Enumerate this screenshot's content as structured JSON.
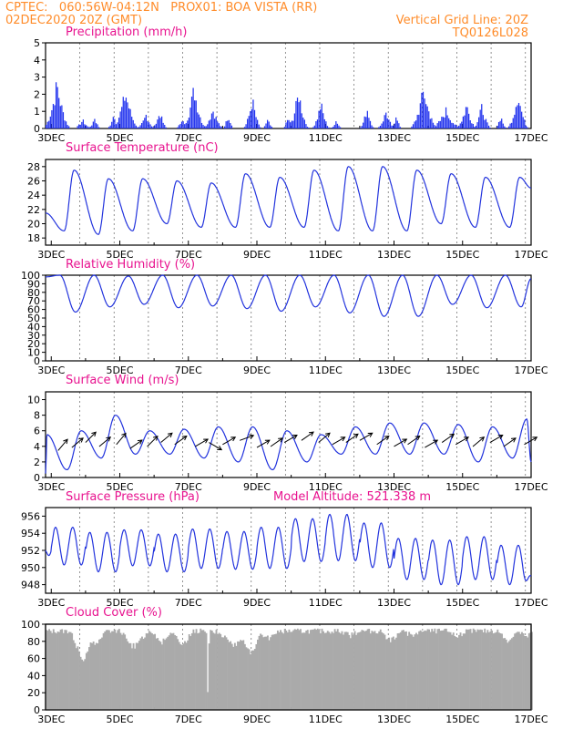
{
  "header": {
    "line1_left": "CPTEC:   060:56W-04:12N   PROX01: BOA VISTA (RR)",
    "line2_left": "02DEC2020 20Z (GMT)",
    "line2_right": "Vertical Grid Line: 20Z",
    "line3_right": "TQ0126L028"
  },
  "colors": {
    "header": "#ff8c2a",
    "title": "#e8138f",
    "line": "#2233dd",
    "bar": "#2233ee",
    "cloud": "#aaaaaa"
  },
  "x_labels": [
    "3DEC",
    "5DEC",
    "7DEC",
    "9DEC",
    "11DEC",
    "13DEC",
    "15DEC",
    "17DEC"
  ],
  "chart_data": [
    {
      "type": "bar",
      "title": "Precipitation (mm/h)",
      "ylim": [
        0,
        5
      ],
      "yticks": [
        0,
        1,
        2,
        3,
        4,
        5
      ],
      "x_range_days": [
        2.833,
        17.0
      ],
      "events": [
        {
          "day": 3.15,
          "peak": 3.2,
          "width": 0.45
        },
        {
          "day": 3.9,
          "peak": 0.6,
          "width": 0.3
        },
        {
          "day": 4.25,
          "peak": 0.8,
          "width": 0.2
        },
        {
          "day": 4.8,
          "peak": 0.9,
          "width": 0.2
        },
        {
          "day": 5.15,
          "peak": 2.6,
          "width": 0.45
        },
        {
          "day": 5.75,
          "peak": 1.0,
          "width": 0.3
        },
        {
          "day": 6.15,
          "peak": 1.2,
          "width": 0.25
        },
        {
          "day": 6.8,
          "peak": 0.7,
          "width": 0.2
        },
        {
          "day": 7.15,
          "peak": 2.9,
          "width": 0.4
        },
        {
          "day": 7.7,
          "peak": 1.4,
          "width": 0.35
        },
        {
          "day": 8.15,
          "peak": 1.0,
          "width": 0.2
        },
        {
          "day": 8.85,
          "peak": 2.1,
          "width": 0.3
        },
        {
          "day": 9.3,
          "peak": 0.6,
          "width": 0.2
        },
        {
          "day": 9.9,
          "peak": 0.8,
          "width": 0.2
        },
        {
          "day": 10.2,
          "peak": 2.6,
          "width": 0.35
        },
        {
          "day": 10.85,
          "peak": 1.8,
          "width": 0.3
        },
        {
          "day": 11.3,
          "peak": 0.6,
          "width": 0.2
        },
        {
          "day": 12.2,
          "peak": 1.5,
          "width": 0.25
        },
        {
          "day": 12.75,
          "peak": 1.2,
          "width": 0.3
        },
        {
          "day": 13.05,
          "peak": 0.8,
          "width": 0.2
        },
        {
          "day": 13.85,
          "peak": 2.8,
          "width": 0.45
        },
        {
          "day": 14.5,
          "peak": 1.3,
          "width": 0.5
        },
        {
          "day": 15.1,
          "peak": 1.7,
          "width": 0.35
        },
        {
          "day": 15.55,
          "peak": 1.6,
          "width": 0.3
        },
        {
          "day": 16.1,
          "peak": 0.9,
          "width": 0.2
        },
        {
          "day": 16.6,
          "peak": 2.6,
          "width": 0.35
        }
      ]
    },
    {
      "type": "line",
      "title": "Surface Temperature (nC)",
      "ylim": [
        17,
        29
      ],
      "yticks": [
        18,
        20,
        22,
        24,
        26,
        28
      ],
      "x_range_days": [
        2.833,
        17.0
      ],
      "diurnal": {
        "max_hour": 16,
        "min_hour": 9,
        "maxima": [
          25.5,
          27.5,
          26.3,
          26.3,
          26.0,
          25.7,
          27.0,
          26.5,
          27.5,
          28.0,
          28.0,
          27.5,
          27.0,
          26.5,
          26.5,
          26.0
        ],
        "minima": [
          19.0,
          18.5,
          19.0,
          20.0,
          19.5,
          19.5,
          19.5,
          19.5,
          19.0,
          19.0,
          19.0,
          20.0,
          19.5,
          19.5,
          20.0,
          19.5
        ],
        "start": 21.5,
        "end": 25.0
      }
    },
    {
      "type": "line",
      "title": "Relative Humidity (%)",
      "ylim": [
        0,
        100
      ],
      "yticks": [
        0,
        10,
        20,
        30,
        40,
        50,
        60,
        70,
        80,
        90,
        100
      ],
      "x_range_days": [
        2.833,
        17.0
      ],
      "diurnal": {
        "max_hour": 6,
        "min_hour": 17,
        "maxima": [
          100,
          100,
          99,
          100,
          100,
          100,
          100,
          100,
          100,
          100,
          100,
          100,
          100,
          100,
          100,
          99
        ],
        "minima": [
          68,
          57,
          63,
          66,
          62,
          64,
          61,
          58,
          63,
          56,
          52,
          52,
          66,
          62,
          63,
          66
        ],
        "start": 98,
        "end": 96
      }
    },
    {
      "type": "line",
      "title": "Surface Wind (m/s)",
      "ylim": [
        0,
        11
      ],
      "yticks": [
        0,
        2,
        4,
        6,
        8,
        10
      ],
      "x_range_days": [
        2.833,
        17.0
      ],
      "diurnal": {
        "max_hour": 21,
        "min_hour": 11,
        "maxima": [
          5.5,
          6.0,
          8.0,
          6.0,
          6.2,
          6.5,
          6.5,
          6.0,
          5.5,
          6.5,
          7.0,
          7.0,
          6.8,
          6.5,
          7.5,
          8.0
        ],
        "minima": [
          1.0,
          2.5,
          3.0,
          3.0,
          2.5,
          2.0,
          1.0,
          2.0,
          3.0,
          3.0,
          3.0,
          3.0,
          2.0,
          2.5,
          1.5,
          2.0
        ],
        "start": 0.5,
        "end": 2.0
      },
      "wind_arrows": [
        {
          "day": 3.2,
          "speed": 2.2,
          "dir": 220
        },
        {
          "day": 3.6,
          "speed": 2.5,
          "dir": 230
        },
        {
          "day": 4.0,
          "speed": 3.0,
          "dir": 225
        },
        {
          "day": 4.4,
          "speed": 2.6,
          "dir": 230
        },
        {
          "day": 4.9,
          "speed": 2.8,
          "dir": 220
        },
        {
          "day": 5.3,
          "speed": 2.4,
          "dir": 235
        },
        {
          "day": 5.8,
          "speed": 2.6,
          "dir": 225
        },
        {
          "day": 6.2,
          "speed": 3.0,
          "dir": 230
        },
        {
          "day": 6.6,
          "speed": 2.8,
          "dir": 235
        },
        {
          "day": 7.2,
          "speed": 2.6,
          "dir": 240
        },
        {
          "day": 7.6,
          "speed": 3.0,
          "dir": 300
        },
        {
          "day": 8.0,
          "speed": 2.8,
          "dir": 240
        },
        {
          "day": 8.5,
          "speed": 3.2,
          "dir": 250
        },
        {
          "day": 9.0,
          "speed": 2.5,
          "dir": 240
        },
        {
          "day": 9.4,
          "speed": 2.6,
          "dir": 235
        },
        {
          "day": 9.8,
          "speed": 3.0,
          "dir": 240
        },
        {
          "day": 10.3,
          "speed": 3.2,
          "dir": 235
        },
        {
          "day": 10.8,
          "speed": 3.0,
          "dir": 230
        },
        {
          "day": 11.2,
          "speed": 2.8,
          "dir": 240
        },
        {
          "day": 11.6,
          "speed": 3.0,
          "dir": 235
        },
        {
          "day": 12.0,
          "speed": 3.2,
          "dir": 240
        },
        {
          "day": 12.5,
          "speed": 2.8,
          "dir": 235
        },
        {
          "day": 13.0,
          "speed": 2.6,
          "dir": 240
        },
        {
          "day": 13.4,
          "speed": 2.8,
          "dir": 235
        },
        {
          "day": 13.9,
          "speed": 2.5,
          "dir": 240
        },
        {
          "day": 14.4,
          "speed": 3.0,
          "dir": 235
        },
        {
          "day": 14.8,
          "speed": 2.8,
          "dir": 240
        },
        {
          "day": 15.3,
          "speed": 2.6,
          "dir": 230
        },
        {
          "day": 15.8,
          "speed": 3.0,
          "dir": 240
        },
        {
          "day": 16.2,
          "speed": 2.6,
          "dir": 235
        },
        {
          "day": 16.8,
          "speed": 2.8,
          "dir": 240
        }
      ]
    },
    {
      "type": "line",
      "title": "Surface Pressure (hPa)",
      "annotation": "Model Altitude: 521.338 m",
      "ylim": [
        947,
        957
      ],
      "yticks": [
        948,
        950,
        952,
        954,
        956
      ],
      "x_range_days": [
        2.833,
        17.0
      ],
      "semidiurnal": {
        "max_hours": [
          15,
          3
        ],
        "min_hours": [
          21,
          9
        ],
        "mean": [
          952.0,
          952.5,
          951.8,
          952.3,
          951.7,
          952.2,
          952.0,
          952.3,
          953.2,
          953.5,
          952.6,
          951.0,
          950.6,
          951.1,
          950.3,
          950.0
        ],
        "amp": [
          2.0,
          2.2,
          2.3,
          2.1,
          2.2,
          2.3,
          2.2,
          2.4,
          2.5,
          2.7,
          2.6,
          2.4,
          2.6,
          2.5,
          2.3,
          2.1
        ],
        "start": 952.0,
        "end": 949.0
      }
    },
    {
      "type": "bar",
      "title": "Cloud Cover (%)",
      "ylim": [
        0,
        100
      ],
      "yticks": [
        0,
        20,
        40,
        60,
        80,
        100
      ],
      "x_range_days": [
        2.833,
        17.0
      ],
      "base_level": 92,
      "dips": [
        {
          "day": 3.9,
          "level": 55,
          "width": 0.35
        },
        {
          "day": 4.3,
          "level": 75,
          "width": 0.25
        },
        {
          "day": 5.4,
          "level": 72,
          "width": 0.4
        },
        {
          "day": 6.2,
          "level": 80,
          "width": 0.3
        },
        {
          "day": 6.8,
          "level": 72,
          "width": 0.3
        },
        {
          "day": 7.55,
          "level": 2,
          "width": 0.04
        },
        {
          "day": 7.9,
          "level": 88,
          "width": 0.3
        },
        {
          "day": 8.3,
          "level": 72,
          "width": 0.35
        },
        {
          "day": 8.8,
          "level": 62,
          "width": 0.3
        },
        {
          "day": 9.3,
          "level": 82,
          "width": 0.3
        },
        {
          "day": 11.7,
          "level": 88,
          "width": 0.3
        },
        {
          "day": 12.9,
          "level": 80,
          "width": 0.3
        },
        {
          "day": 13.5,
          "level": 86,
          "width": 0.3
        },
        {
          "day": 14.8,
          "level": 86,
          "width": 0.3
        },
        {
          "day": 16.3,
          "level": 80,
          "width": 0.3
        },
        {
          "day": 16.8,
          "level": 86,
          "width": 0.3
        }
      ]
    }
  ]
}
